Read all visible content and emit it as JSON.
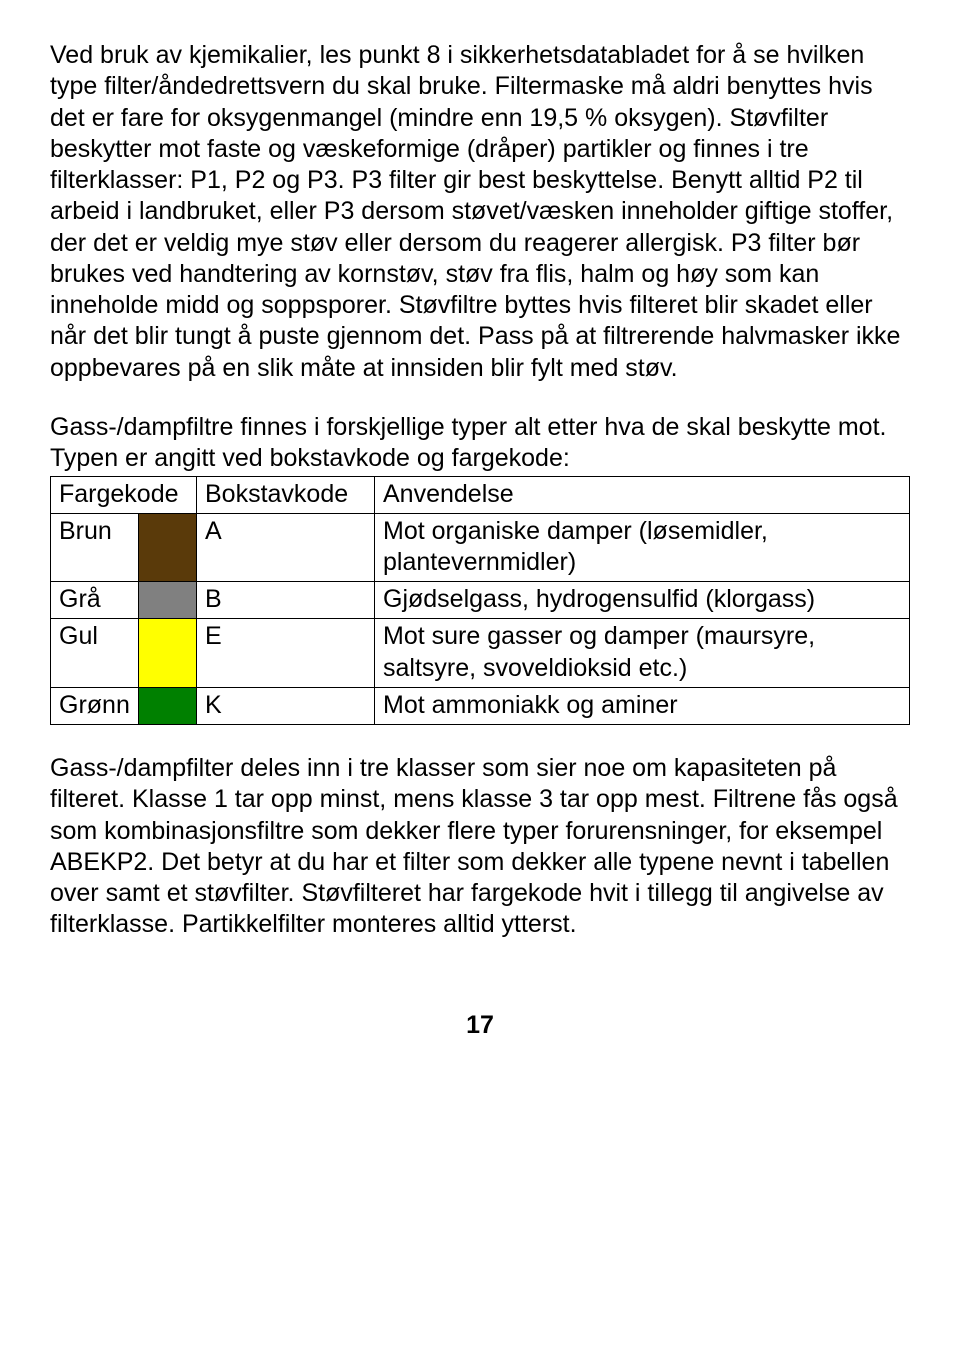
{
  "para1": "Ved bruk av kjemikalier, les punkt 8 i sikkerhetsdatabladet for å se hvilken type filter/åndedrettsvern du skal bruke. Filtermaske må aldri benyttes hvis det er fare for oksygenmangel (mindre enn 19,5 % oksygen). Støvfilter beskytter mot faste og væskeformige (dråper) partikler og finnes i tre filterklasser: P1, P2 og P3. P3 filter gir best beskyttelse. Benytt alltid P2 til arbeid i landbruket, eller P3 dersom støvet/væsken inneholder giftige stoffer, der det er veldig mye støv eller dersom du reagerer allergisk. P3 filter bør brukes ved handtering av kornstøv, støv fra flis, halm og høy som kan inneholde midd og soppsporer. Støvfiltre byttes hvis filteret blir skadet eller når det blir tungt å puste gjennom det. Pass på at filtrerende halvmasker ikke oppbevares på en slik måte at innsiden blir fylt med støv.",
  "para2": "Gass-/dampfiltre finnes i forskjellige typer alt etter hva de skal beskytte mot. Typen er angitt ved bokstavkode og fargekode:",
  "table": {
    "headers": {
      "col1": "Fargekode",
      "col2": "Bokstavkode",
      "col3": "Anvendelse"
    },
    "rows": [
      {
        "name": "Brun",
        "swatch": "#5a3a0a",
        "code": "A",
        "use": "Mot organiske damper (løsemidler, plantevernmidler)"
      },
      {
        "name": "Grå",
        "swatch": "#808080",
        "code": "B",
        "use": "Gjødselgass, hydrogensulfid (klorgass)"
      },
      {
        "name": "Gul",
        "swatch": "#ffff00",
        "code": "E",
        "use": "Mot sure gasser og damper (maursyre, saltsyre, svoveldioksid etc.)"
      },
      {
        "name": "Grønn",
        "swatch": "#008000",
        "code": "K",
        "use": "Mot ammoniakk og aminer"
      }
    ]
  },
  "para3": "Gass-/dampfilter deles inn i tre klasser som sier noe om kapasiteten på filteret. Klasse 1 tar opp minst, mens klasse 3 tar opp mest. Filtrene fås også som kombinasjonsfiltre som dekker flere typer forurensninger, for eksempel ABEKP2. Det betyr at du har et filter som dekker alle typene nevnt i tabellen over samt et støvfilter. Støvfilteret har fargekode hvit i tillegg til angivelse av filterklasse. Partikkelfilter monteres alltid ytterst.",
  "pageNumber": "17"
}
